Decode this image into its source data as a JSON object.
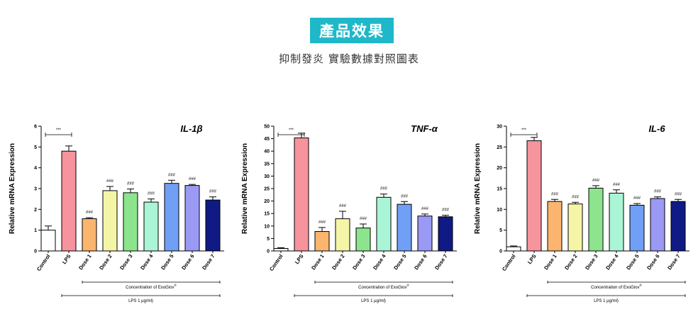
{
  "header": {
    "title": "產品效果",
    "subtitle": "抑制發炎 實驗數據對照圖表"
  },
  "colors": {
    "accent": "#1fb8c9",
    "bars": [
      "#ffffff",
      "#f6939c",
      "#fbb56e",
      "#f5f5a8",
      "#8ce58c",
      "#aaf5d6",
      "#6fa0f5",
      "#9a9af5",
      "#0f1a85"
    ]
  },
  "chart_data": [
    {
      "type": "bar",
      "title": "IL-1β",
      "ylabel": "Relative mRNA Expression",
      "ylim": [
        0,
        6
      ],
      "yticks": [
        0,
        1,
        2,
        3,
        4,
        5,
        6
      ],
      "categories": [
        "Control",
        "LPS",
        "Dose 1",
        "Dose 2",
        "Dose 3",
        "Dose 4",
        "Dose 5",
        "Dose 6",
        "Dose 7"
      ],
      "values": [
        1.0,
        4.8,
        1.55,
        2.9,
        2.8,
        2.35,
        3.25,
        3.15,
        2.45
      ],
      "errors": [
        0.2,
        0.25,
        0.05,
        0.2,
        0.18,
        0.15,
        0.15,
        0.05,
        0.15
      ],
      "significance": [
        "",
        "",
        "###",
        "###",
        "###",
        "###",
        "###",
        "###",
        "###"
      ],
      "comparison_label": "***",
      "group_label": "Concentration of ExoGiov",
      "group_label_sup": "®",
      "treatment_label": "LPS 1 μg/ml)"
    },
    {
      "type": "bar",
      "title": "TNF-α",
      "ylabel": "Relative mRNA Expression",
      "ylim": [
        0,
        50
      ],
      "yticks": [
        0,
        5,
        10,
        15,
        20,
        25,
        30,
        35,
        40,
        45,
        50
      ],
      "categories": [
        "Control",
        "LPS",
        "Dose 1",
        "Dose 2",
        "Dose 3",
        "Dose 4",
        "Dose 5",
        "Dose 6",
        "Dose 7"
      ],
      "values": [
        1.0,
        45.3,
        7.8,
        12.9,
        9.2,
        21.5,
        18.7,
        14.0,
        13.7
      ],
      "errors": [
        0.3,
        1.9,
        1.6,
        3.0,
        1.6,
        1.3,
        1.1,
        0.8,
        0.6
      ],
      "significance": [
        "",
        "",
        "###",
        "###",
        "###",
        "###",
        "###",
        "###",
        "###"
      ],
      "comparison_label": "***",
      "group_label": "Concentration of ExoGiov",
      "group_label_sup": "®",
      "treatment_label": "LPS 1 μg/ml)"
    },
    {
      "type": "bar",
      "title": "IL-6",
      "ylabel": "Relative mRNA Expression",
      "ylim": [
        0,
        30
      ],
      "yticks": [
        0,
        5,
        10,
        15,
        20,
        25,
        30
      ],
      "categories": [
        "Control",
        "LPS",
        "Dose 1",
        "Dose 2",
        "Dose 3",
        "Dose 4",
        "Dose 5",
        "Dose 6",
        "Dose 7"
      ],
      "values": [
        1.0,
        26.5,
        11.9,
        11.3,
        15.1,
        13.9,
        11.0,
        12.6,
        11.9
      ],
      "errors": [
        0.2,
        0.8,
        0.5,
        0.4,
        0.6,
        0.8,
        0.4,
        0.4,
        0.5
      ],
      "significance": [
        "",
        "",
        "###",
        "###",
        "###",
        "###",
        "###",
        "###",
        "###"
      ],
      "comparison_label": "***",
      "group_label": "Concentration of ExoGiov",
      "group_label_sup": "®",
      "treatment_label": "LPS 1 μg/ml)"
    }
  ]
}
